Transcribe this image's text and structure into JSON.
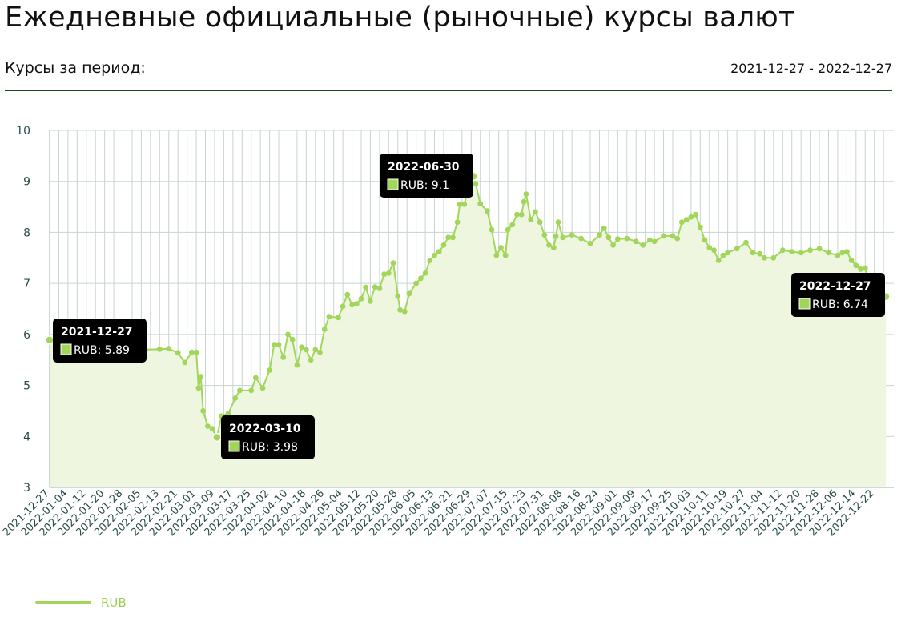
{
  "header": {
    "title": "Ежедневные официальные (рыночные) курсы валют",
    "period_label": "Курсы за период:",
    "period_range": "2021-12-27 - 2022-12-27"
  },
  "colors": {
    "series": "#a2d65a",
    "area": "#eef6e0",
    "grid": "#c8d3d3",
    "rule": "#1f4a1f",
    "tooltip_bg": "#000000"
  },
  "chart_data": {
    "type": "area",
    "title": "",
    "xlabel": "",
    "ylabel": "",
    "ylim": [
      3,
      10
    ],
    "yticks": [
      3,
      4,
      5,
      6,
      7,
      8,
      9,
      10
    ],
    "grid": true,
    "legend_position": "bottom-left",
    "x_start": "2021-12-27",
    "x_end": "2022-12-27",
    "xtick_labels": [
      "2021-12-27",
      "2022-01-04",
      "2022-01-12",
      "2022-01-20",
      "2022-01-28",
      "2022-02-05",
      "2022-02-13",
      "2022-02-21",
      "2022-03-01",
      "2022-03-09",
      "2022-03-17",
      "2022-03-25",
      "2022-04-02",
      "2022-04-10",
      "2022-04-18",
      "2022-04-26",
      "2022-05-04",
      "2022-05-12",
      "2022-05-20",
      "2022-05-28",
      "2022-06-05",
      "2022-06-13",
      "2022-06-21",
      "2022-06-29",
      "2022-07-07",
      "2022-07-15",
      "2022-07-23",
      "2022-07-31",
      "2022-08-08",
      "2022-08-16",
      "2022-08-24",
      "2022-09-01",
      "2022-09-09",
      "2022-09-17",
      "2022-09-25",
      "2022-10-03",
      "2022-10-11",
      "2022-10-19",
      "2022-10-27",
      "2022-11-04",
      "2022-11-12",
      "2022-11-20",
      "2022-11-28",
      "2022-12-06",
      "2022-12-14",
      "2022-12-22"
    ],
    "series": [
      {
        "name": "RUB",
        "points": [
          [
            "2021-12-27",
            5.89
          ],
          [
            "2022-01-04",
            5.8
          ],
          [
            "2022-01-12",
            5.78
          ],
          [
            "2022-01-20",
            5.76
          ],
          [
            "2022-01-28",
            5.72
          ],
          [
            "2022-02-05",
            5.7
          ],
          [
            "2022-02-13",
            5.71
          ],
          [
            "2022-02-17",
            5.72
          ],
          [
            "2022-02-21",
            5.64
          ],
          [
            "2022-02-24",
            5.45
          ],
          [
            "2022-02-27",
            5.65
          ],
          [
            "2022-03-01",
            5.65
          ],
          [
            "2022-03-02",
            4.95
          ],
          [
            "2022-03-03",
            5.17
          ],
          [
            "2022-03-04",
            4.5
          ],
          [
            "2022-03-06",
            4.2
          ],
          [
            "2022-03-08",
            4.15
          ],
          [
            "2022-03-10",
            3.98
          ],
          [
            "2022-03-12",
            4.4
          ],
          [
            "2022-03-15",
            4.45
          ],
          [
            "2022-03-18",
            4.75
          ],
          [
            "2022-03-20",
            4.9
          ],
          [
            "2022-03-25",
            4.9
          ],
          [
            "2022-03-27",
            5.15
          ],
          [
            "2022-03-30",
            4.95
          ],
          [
            "2022-04-02",
            5.3
          ],
          [
            "2022-04-04",
            5.8
          ],
          [
            "2022-04-06",
            5.8
          ],
          [
            "2022-04-08",
            5.55
          ],
          [
            "2022-04-10",
            6.0
          ],
          [
            "2022-04-12",
            5.9
          ],
          [
            "2022-04-14",
            5.4
          ],
          [
            "2022-04-16",
            5.75
          ],
          [
            "2022-04-18",
            5.7
          ],
          [
            "2022-04-20",
            5.5
          ],
          [
            "2022-04-22",
            5.7
          ],
          [
            "2022-04-24",
            5.65
          ],
          [
            "2022-04-26",
            6.1
          ],
          [
            "2022-04-28",
            6.35
          ],
          [
            "2022-05-02",
            6.33
          ],
          [
            "2022-05-04",
            6.55
          ],
          [
            "2022-05-06",
            6.78
          ],
          [
            "2022-05-08",
            6.58
          ],
          [
            "2022-05-10",
            6.6
          ],
          [
            "2022-05-12",
            6.7
          ],
          [
            "2022-05-14",
            6.92
          ],
          [
            "2022-05-16",
            6.65
          ],
          [
            "2022-05-18",
            6.93
          ],
          [
            "2022-05-20",
            6.9
          ],
          [
            "2022-05-22",
            7.18
          ],
          [
            "2022-05-24",
            7.2
          ],
          [
            "2022-05-26",
            7.4
          ],
          [
            "2022-05-28",
            6.75
          ],
          [
            "2022-05-29",
            6.48
          ],
          [
            "2022-05-31",
            6.45
          ],
          [
            "2022-06-02",
            6.8
          ],
          [
            "2022-06-05",
            7.0
          ],
          [
            "2022-06-07",
            7.1
          ],
          [
            "2022-06-09",
            7.2
          ],
          [
            "2022-06-11",
            7.45
          ],
          [
            "2022-06-13",
            7.55
          ],
          [
            "2022-06-15",
            7.62
          ],
          [
            "2022-06-17",
            7.75
          ],
          [
            "2022-06-19",
            7.9
          ],
          [
            "2022-06-21",
            7.9
          ],
          [
            "2022-06-23",
            8.2
          ],
          [
            "2022-06-24",
            8.55
          ],
          [
            "2022-06-26",
            8.55
          ],
          [
            "2022-06-28",
            8.9
          ],
          [
            "2022-06-30",
            9.1
          ],
          [
            "2022-07-01",
            8.95
          ],
          [
            "2022-07-03",
            8.56
          ],
          [
            "2022-07-06",
            8.42
          ],
          [
            "2022-07-08",
            8.05
          ],
          [
            "2022-07-10",
            7.55
          ],
          [
            "2022-07-12",
            7.7
          ],
          [
            "2022-07-14",
            7.55
          ],
          [
            "2022-07-15",
            8.05
          ],
          [
            "2022-07-17",
            8.15
          ],
          [
            "2022-07-19",
            8.35
          ],
          [
            "2022-07-21",
            8.35
          ],
          [
            "2022-07-22",
            8.6
          ],
          [
            "2022-07-23",
            8.75
          ],
          [
            "2022-07-25",
            8.25
          ],
          [
            "2022-07-27",
            8.4
          ],
          [
            "2022-07-29",
            8.2
          ],
          [
            "2022-07-31",
            7.95
          ],
          [
            "2022-08-02",
            7.75
          ],
          [
            "2022-08-04",
            7.7
          ],
          [
            "2022-08-05",
            7.92
          ],
          [
            "2022-08-06",
            8.2
          ],
          [
            "2022-08-08",
            7.9
          ],
          [
            "2022-08-12",
            7.95
          ],
          [
            "2022-08-16",
            7.88
          ],
          [
            "2022-08-20",
            7.78
          ],
          [
            "2022-08-24",
            7.95
          ],
          [
            "2022-08-26",
            8.08
          ],
          [
            "2022-08-28",
            7.9
          ],
          [
            "2022-08-30",
            7.75
          ],
          [
            "2022-09-01",
            7.87
          ],
          [
            "2022-09-05",
            7.88
          ],
          [
            "2022-09-09",
            7.82
          ],
          [
            "2022-09-12",
            7.75
          ],
          [
            "2022-09-15",
            7.85
          ],
          [
            "2022-09-17",
            7.82
          ],
          [
            "2022-09-21",
            7.93
          ],
          [
            "2022-09-25",
            7.93
          ],
          [
            "2022-09-27",
            7.88
          ],
          [
            "2022-09-29",
            8.2
          ],
          [
            "2022-10-01",
            8.25
          ],
          [
            "2022-10-03",
            8.3
          ],
          [
            "2022-10-05",
            8.35
          ],
          [
            "2022-10-07",
            8.1
          ],
          [
            "2022-10-09",
            7.85
          ],
          [
            "2022-10-11",
            7.7
          ],
          [
            "2022-10-13",
            7.65
          ],
          [
            "2022-10-15",
            7.45
          ],
          [
            "2022-10-17",
            7.55
          ],
          [
            "2022-10-19",
            7.6
          ],
          [
            "2022-10-23",
            7.68
          ],
          [
            "2022-10-27",
            7.8
          ],
          [
            "2022-10-30",
            7.6
          ],
          [
            "2022-11-02",
            7.58
          ],
          [
            "2022-11-04",
            7.5
          ],
          [
            "2022-11-08",
            7.5
          ],
          [
            "2022-11-12",
            7.65
          ],
          [
            "2022-11-16",
            7.62
          ],
          [
            "2022-11-20",
            7.6
          ],
          [
            "2022-11-24",
            7.65
          ],
          [
            "2022-11-28",
            7.68
          ],
          [
            "2022-12-02",
            7.6
          ],
          [
            "2022-12-06",
            7.55
          ],
          [
            "2022-12-08",
            7.6
          ],
          [
            "2022-12-10",
            7.62
          ],
          [
            "2022-12-12",
            7.45
          ],
          [
            "2022-12-14",
            7.35
          ],
          [
            "2022-12-16",
            7.28
          ],
          [
            "2022-12-18",
            7.3
          ],
          [
            "2022-12-20",
            6.85
          ],
          [
            "2022-12-24",
            6.8
          ],
          [
            "2022-12-27",
            6.74
          ]
        ]
      }
    ],
    "tooltips": [
      {
        "date": "2021-12-27",
        "text": "RUB: 5.89"
      },
      {
        "date": "2022-03-10",
        "text": "RUB: 3.98"
      },
      {
        "date": "2022-06-30",
        "text": "RUB: 9.1"
      },
      {
        "date": "2022-12-27",
        "text": "RUB: 6.74"
      }
    ]
  },
  "legend": {
    "items": [
      {
        "label": "RUB"
      }
    ]
  }
}
